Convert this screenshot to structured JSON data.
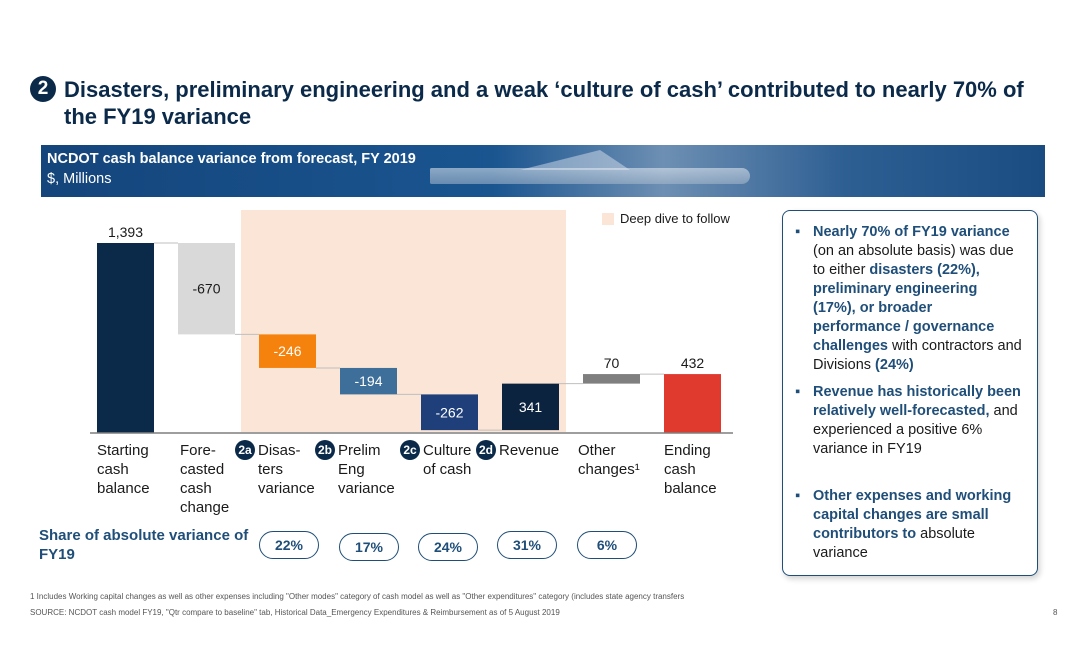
{
  "header": {
    "number": "2",
    "title": "Disasters, preliminary engineering and a weak ‘culture of cash’ contributed to nearly 70% of the FY19 variance"
  },
  "banner": {
    "title": "NCDOT cash balance variance from forecast, FY 2019",
    "subtitle": "$, Millions"
  },
  "legend": {
    "deep_dive": "Deep dive to follow"
  },
  "colors": {
    "navy": "#0b2a4a",
    "dark_blue": "#1f3f7a",
    "gray": "#d9d9d9",
    "orange": "#f5820d",
    "steel": "#3d6f9a",
    "dark_navy": "#0c2340",
    "mid_gray": "#7f7f7f",
    "red": "#e03a2f",
    "highlight": "#fbe5d6"
  },
  "chart_data": {
    "type": "waterfall",
    "title": "NCDOT cash balance variance from forecast, FY 2019",
    "ylabel": "$, Millions",
    "categories": [
      {
        "label": "Starting cash balance",
        "value": 1393,
        "display": "1,393",
        "kind": "total"
      },
      {
        "label": "Fore-casted cash change",
        "value": -670,
        "display": "-670",
        "kind": "delta"
      },
      {
        "label": "Disas-ters variance",
        "value": -246,
        "display": "-246",
        "kind": "delta",
        "badge": "2a"
      },
      {
        "label": "Prelim Eng variance",
        "value": -194,
        "display": "-194",
        "kind": "delta",
        "badge": "2b"
      },
      {
        "label": "Culture of cash",
        "value": -262,
        "display": "-262",
        "kind": "delta",
        "badge": "2c"
      },
      {
        "label": "Revenue",
        "value": 341,
        "display": "341",
        "kind": "delta",
        "badge": "2d"
      },
      {
        "label": "Other changes¹",
        "value": 70,
        "display": "70",
        "kind": "delta"
      },
      {
        "label": "Ending cash balance",
        "value": 432,
        "display": "432",
        "kind": "total"
      }
    ]
  },
  "labels": {
    "c0": [
      "Starting",
      "cash",
      "balance"
    ],
    "c1": [
      "Fore-",
      "casted",
      "cash",
      "change"
    ],
    "c2": [
      "Disas-",
      "ters",
      "variance"
    ],
    "c3": [
      "Prelim",
      "Eng",
      "variance"
    ],
    "c4": [
      "Culture",
      "of cash"
    ],
    "c5": [
      "Revenue"
    ],
    "c6": [
      "Other",
      "changes¹"
    ],
    "c7": [
      "Ending",
      "cash",
      "balance"
    ],
    "badges": [
      "2a",
      "2b",
      "2c",
      "2d"
    ]
  },
  "share": {
    "label": "Share of absolute variance of FY19",
    "values": [
      "22%",
      "17%",
      "24%",
      "31%",
      "6%"
    ]
  },
  "callout": {
    "b1_a": "Nearly 70% of FY19 variance",
    "b1_b": " (on an absolute basis) was due to either ",
    "b1_c": "disasters (22%), preliminary engineering (17%), or broader performance / governance challenges",
    "b1_d": " with contractors and Divisions ",
    "b1_e": "(24%)",
    "b2_a": "Revenue has historically been relatively well-forecasted,",
    "b2_b": " and experienced a positive 6% variance in FY19",
    "b3_a": "Other expenses and working capital changes are small contributors to",
    "b3_b": " absolute variance"
  },
  "footer": {
    "footnote": "1 Includes Working capital changes as well as other expenses including \"Other modes\" category of cash model as well as \"Other expenditures\" category (includes state agency transfers",
    "source": "SOURCE: NCDOT cash model FY19, \"Qtr compare to baseline\" tab, Historical Data_Emergency Expenditures & Reimbursement as of 5 August 2019",
    "page": "8"
  }
}
